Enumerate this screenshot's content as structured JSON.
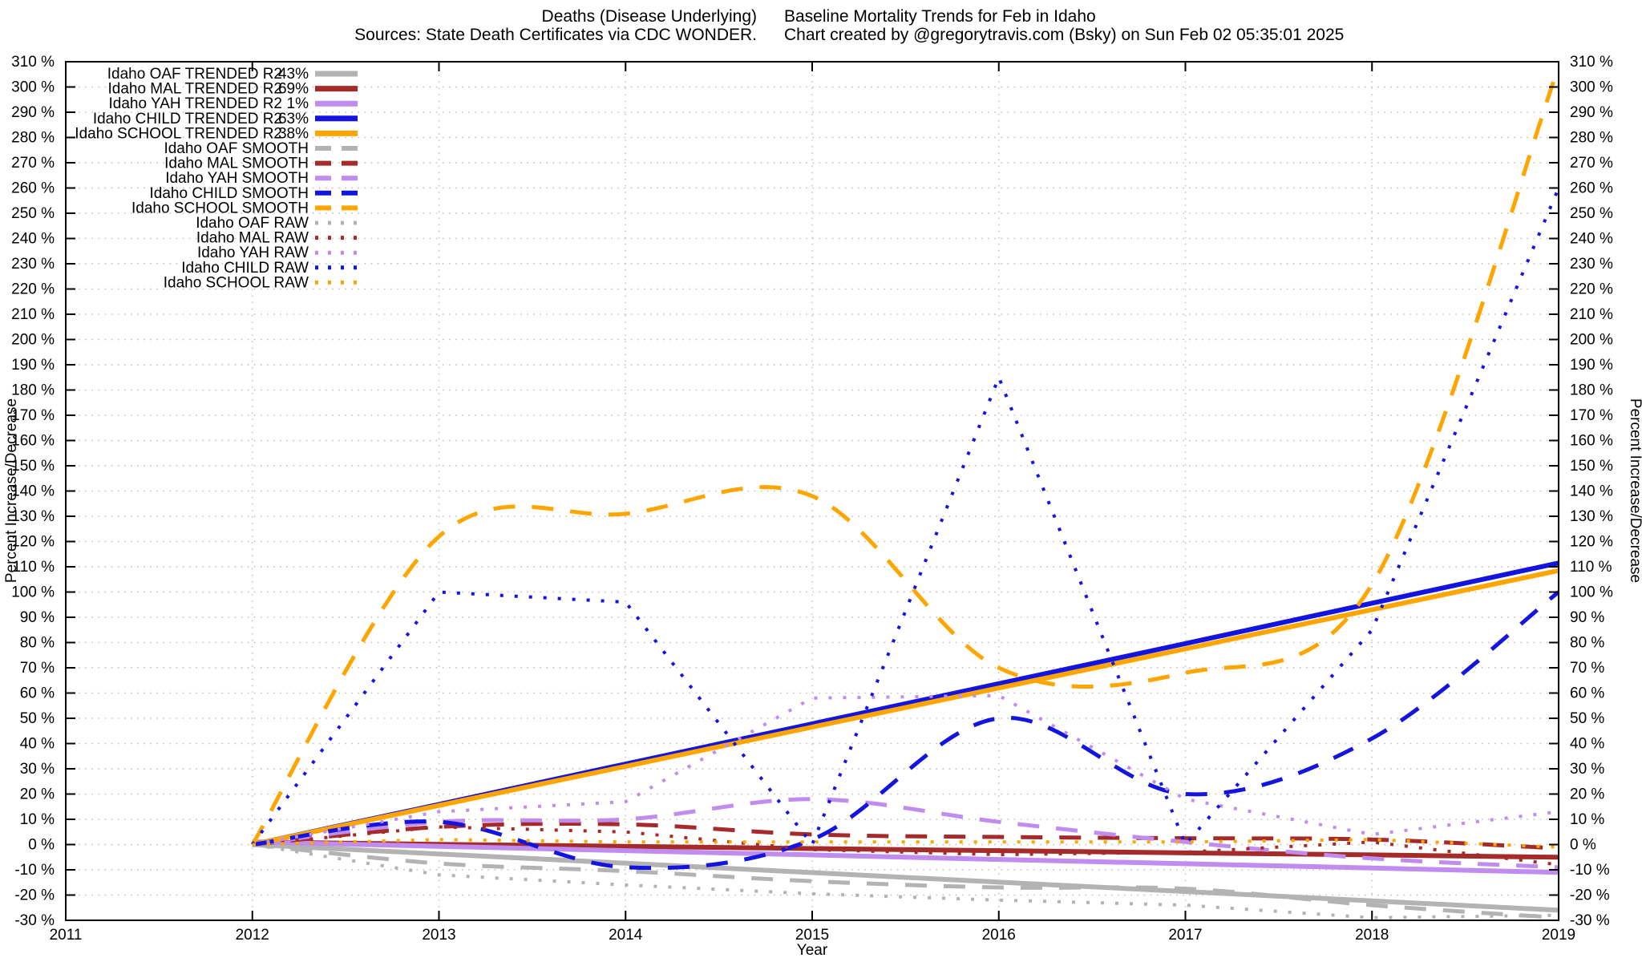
{
  "header": {
    "title_left": "Deaths (Disease Underlying)",
    "title_right": "Baseline Mortality Trends for Feb in Idaho",
    "subtitle_left": "Sources: State Death Certificates via CDC WONDER.",
    "subtitle_right": "Chart created by @gregorytravis.com (Bsky) on Sun Feb 02 05:35:01 2025"
  },
  "chart_data": {
    "type": "line",
    "title": "Deaths (Disease Underlying)  Baseline Mortality Trends for Feb in Idaho",
    "xlabel": "Year",
    "ylabel_left": "Percent Increase/Decrease",
    "ylabel_right": "Percent Increase/Decrease",
    "x_range": [
      2011,
      2019
    ],
    "y_range": [
      -30,
      310
    ],
    "y_tick_step": 10,
    "y_tick_suffix": " %",
    "grid": true,
    "legend_position": "top-left",
    "x": [
      2012,
      2013,
      2014,
      2015,
      2016,
      2017,
      2018,
      2019
    ],
    "colors": {
      "oaf": "#b3b3b3",
      "mal": "#a52a2a",
      "yah": "#c08cf0",
      "child": "#1414e0",
      "school": "#ffa500"
    },
    "series": [
      {
        "id": "oaf-trended",
        "legend_label": "Idaho OAF TRENDED R2",
        "r2": "43%",
        "color_key": "oaf",
        "style": "solid",
        "values": [
          0,
          -3.7,
          -7.4,
          -11.1,
          -14.9,
          -18.6,
          -22.3,
          -26
        ]
      },
      {
        "id": "mal-trended",
        "legend_label": "Idaho MAL TRENDED R2",
        "r2": "69%",
        "color_key": "mal",
        "style": "solid",
        "values": [
          1,
          0.1,
          -0.7,
          -1.6,
          -2.4,
          -3.3,
          -4.1,
          -5
        ]
      },
      {
        "id": "yah-trended",
        "legend_label": "Idaho YAH TRENDED R2",
        "r2": "1%",
        "color_key": "yah",
        "style": "solid",
        "values": [
          1,
          -0.7,
          -2.4,
          -4.1,
          -5.9,
          -7.6,
          -9.3,
          -11
        ]
      },
      {
        "id": "child-trended",
        "legend_label": "Idaho CHILD TRENDED R2",
        "r2": "63%",
        "color_key": "child",
        "style": "solid",
        "values": [
          0,
          15.9,
          31.9,
          47.8,
          63.7,
          79.6,
          95.6,
          111.5
        ]
      },
      {
        "id": "school-trended",
        "legend_label": "Idaho SCHOOL TRENDED R2",
        "r2": "38%",
        "color_key": "school",
        "style": "solid",
        "values": [
          0,
          15.5,
          31,
          46.5,
          62,
          77.5,
          93,
          108.5
        ]
      },
      {
        "id": "oaf-smooth",
        "legend_label": "Idaho OAF SMOOTH",
        "color_key": "oaf",
        "style": "dashed",
        "values": [
          0,
          -7.5,
          -10.5,
          -14.5,
          -17,
          -17.5,
          -24,
          -29
        ]
      },
      {
        "id": "mal-smooth",
        "legend_label": "Idaho MAL SMOOTH",
        "color_key": "mal",
        "style": "dashed",
        "values": [
          0,
          7,
          8,
          4,
          3,
          2.5,
          2,
          -1.5
        ]
      },
      {
        "id": "yah-smooth",
        "legend_label": "Idaho YAH SMOOTH",
        "color_key": "yah",
        "style": "dashed",
        "values": [
          0,
          9,
          10,
          18,
          9,
          1,
          -5.5,
          -9
        ]
      },
      {
        "id": "child-smooth",
        "legend_label": "Idaho CHILD SMOOTH",
        "color_key": "child",
        "style": "dashed",
        "values": [
          0,
          9,
          -9,
          2,
          50,
          20,
          42,
          100
        ]
      },
      {
        "id": "school-smooth",
        "legend_label": "Idaho SCHOOL SMOOTH",
        "color_key": "school",
        "style": "dashed",
        "values": [
          0,
          122,
          131,
          138,
          70,
          68,
          103,
          308
        ]
      },
      {
        "id": "oaf-raw",
        "legend_label": "Idaho OAF RAW",
        "color_key": "oaf",
        "style": "dotted",
        "values": [
          0,
          -12,
          -16,
          -19.5,
          -22,
          -24,
          -29,
          -28
        ]
      },
      {
        "id": "mal-raw",
        "legend_label": "Idaho MAL RAW",
        "color_key": "mal",
        "style": "dotted",
        "values": [
          0,
          7,
          5,
          -2,
          -4,
          -3,
          1,
          -8
        ]
      },
      {
        "id": "yah-raw",
        "legend_label": "Idaho YAH RAW",
        "color_key": "yah",
        "style": "dotted",
        "values": [
          0,
          13,
          17,
          58,
          59,
          18,
          4,
          13
        ]
      },
      {
        "id": "child-raw",
        "legend_label": "Idaho CHILD RAW",
        "color_key": "child",
        "style": "dotted",
        "values": [
          0,
          100,
          96,
          0,
          185,
          0,
          85,
          260
        ]
      },
      {
        "id": "school-raw",
        "legend_label": "Idaho SCHOOL RAW",
        "color_key": "school",
        "style": "dotted",
        "values": [
          0,
          2,
          1,
          1,
          1,
          1,
          2,
          -1
        ]
      }
    ]
  }
}
